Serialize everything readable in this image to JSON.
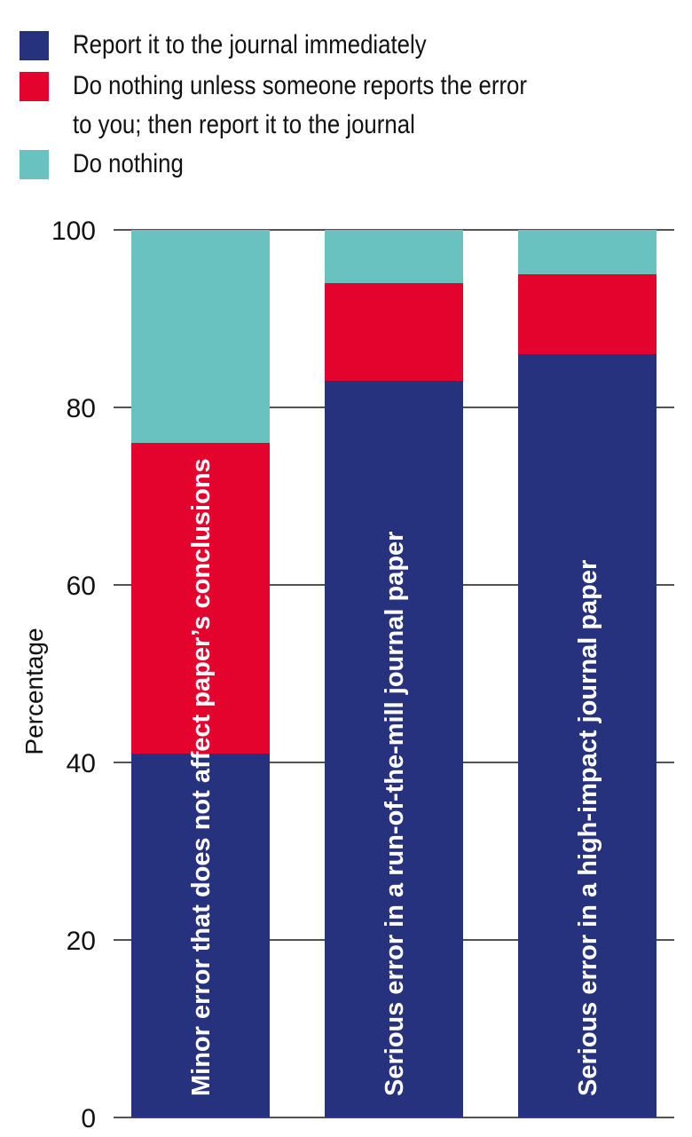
{
  "legend": {
    "items": [
      {
        "label": "Report it to the journal immediately",
        "color": "#27327e"
      },
      {
        "label": "Do nothing unless someone reports the error\nto you; then report it to the journal",
        "color": "#e4032d"
      },
      {
        "label": "Do nothing",
        "color": "#69c2c0"
      }
    ]
  },
  "chart_data": {
    "type": "bar",
    "stacked": true,
    "categories": [
      "Minor error that does not affect paper’s conclusions",
      "Serious error in a run-of-the-mill journal paper",
      "Serious error in a high-impact journal paper"
    ],
    "series": [
      {
        "name": "Report it to the journal immediately",
        "color": "#27327e",
        "values": [
          41,
          83,
          86
        ]
      },
      {
        "name": "Do nothing unless someone reports the error to you; then report it to the journal",
        "color": "#e4032d",
        "values": [
          35,
          11,
          9
        ]
      },
      {
        "name": "Do nothing",
        "color": "#69c2c0",
        "values": [
          24,
          6,
          5
        ]
      }
    ],
    "ylabel": "Percentage",
    "ylim": [
      0,
      100
    ],
    "yticks": [
      0,
      20,
      40,
      60,
      80,
      100
    ],
    "grid": true,
    "legend_position": "top-left",
    "category_labels_inside_bars": true
  }
}
